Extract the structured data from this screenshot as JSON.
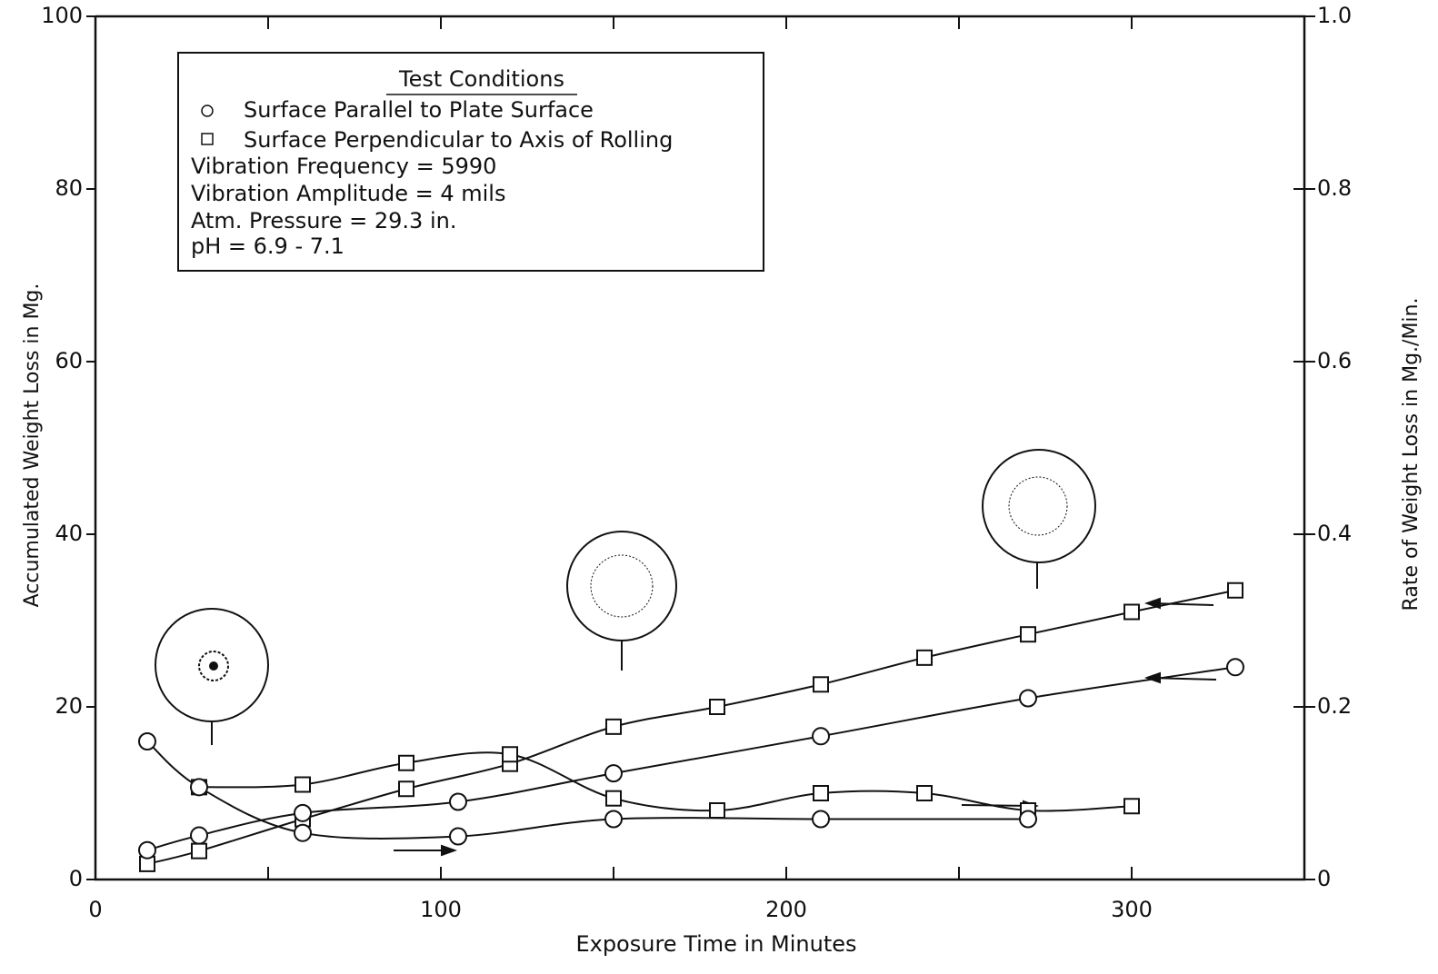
{
  "chart_data": {
    "type": "line",
    "xlabel": "Exposure Time in Minutes",
    "ylabel": "Accumulated Weight Loss in Mg.",
    "y2label": "Rate of Weight Loss in Mg./Min.",
    "xlim": [
      0,
      350
    ],
    "xticks": [
      0,
      100,
      200,
      300
    ],
    "xminor_ticks": [
      50,
      150,
      250
    ],
    "ylim": [
      0,
      100
    ],
    "yticks": [
      0,
      20,
      40,
      60,
      80,
      100
    ],
    "y2lim": [
      0,
      1
    ],
    "y2ticks": [
      0,
      {
        "value": 0.2,
        "label": "0.2"
      },
      {
        "value": 0.4,
        "label": "0.4"
      },
      {
        "value": 0.6,
        "label": "0.6"
      },
      {
        "value": 0.8,
        "label": "0.8"
      },
      {
        "value": 1,
        "label": "1.0"
      }
    ],
    "grid": false,
    "legend": {
      "title": "Test Conditions",
      "entries": [
        {
          "label": "Surface Parallel to Plate Surface",
          "marker": "circle"
        },
        {
          "label": "Surface Perpendicular to Axis of Rolling",
          "marker": "square"
        }
      ],
      "notes": [
        "Vibration Frequency = 5990",
        "Vibration Amplitude = 4 mils",
        "Atm. Pressure = 29.3 in.",
        "pH = 6.9 - 7.1"
      ]
    },
    "series": [
      {
        "marker": "square",
        "axis": "y",
        "color": "#111",
        "x": [
          15,
          30,
          60,
          90,
          120,
          150,
          180,
          210,
          240,
          270,
          300,
          330
        ],
        "values": [
          1.8,
          3.3,
          7,
          10.5,
          13.4,
          17.7,
          20,
          22.6,
          25.7,
          28.4,
          31,
          33.5
        ]
      },
      {
        "marker": "circle",
        "axis": "y",
        "color": "#111",
        "x": [
          15,
          30,
          60,
          105,
          150,
          210,
          270,
          330
        ],
        "values": [
          3.4,
          5.1,
          7.7,
          9,
          12.3,
          16.6,
          21,
          24.6
        ]
      },
      {
        "marker": "square",
        "axis": "y2",
        "color": "#111",
        "x": [
          30,
          60,
          90,
          120,
          150,
          180,
          210,
          240,
          270,
          300
        ],
        "values": [
          0.107,
          0.11,
          0.135,
          0.145,
          0.094,
          0.08,
          0.1,
          0.1,
          0.08,
          0.085
        ]
      },
      {
        "marker": "circle",
        "axis": "y2",
        "color": "#111",
        "x": [
          15,
          30,
          60,
          105,
          150,
          210,
          270
        ],
        "values": [
          0.16,
          0.107,
          0.054,
          0.05,
          0.07,
          0.07,
          0.07
        ]
      }
    ]
  }
}
